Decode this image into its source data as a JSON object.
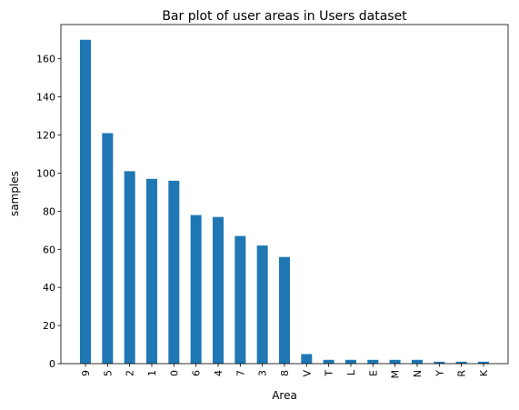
{
  "chart_data": {
    "type": "bar",
    "title": "Bar plot of user areas in Users dataset",
    "xlabel": "Area",
    "ylabel": "samples",
    "categories": [
      "9",
      "5",
      "2",
      "1",
      "0",
      "6",
      "4",
      "7",
      "3",
      "8",
      "V",
      "T",
      "L",
      "E",
      "M",
      "N",
      "Y",
      "R",
      "K"
    ],
    "values": [
      170,
      121,
      101,
      97,
      96,
      78,
      77,
      67,
      62,
      56,
      5,
      2,
      2,
      2,
      2,
      2,
      1,
      1,
      1
    ],
    "ylim": [
      0,
      178
    ],
    "yticks": [
      0,
      20,
      40,
      60,
      80,
      100,
      120,
      140,
      160
    ],
    "bar_color": "#1f77b4",
    "grid": false,
    "legend": "none"
  }
}
